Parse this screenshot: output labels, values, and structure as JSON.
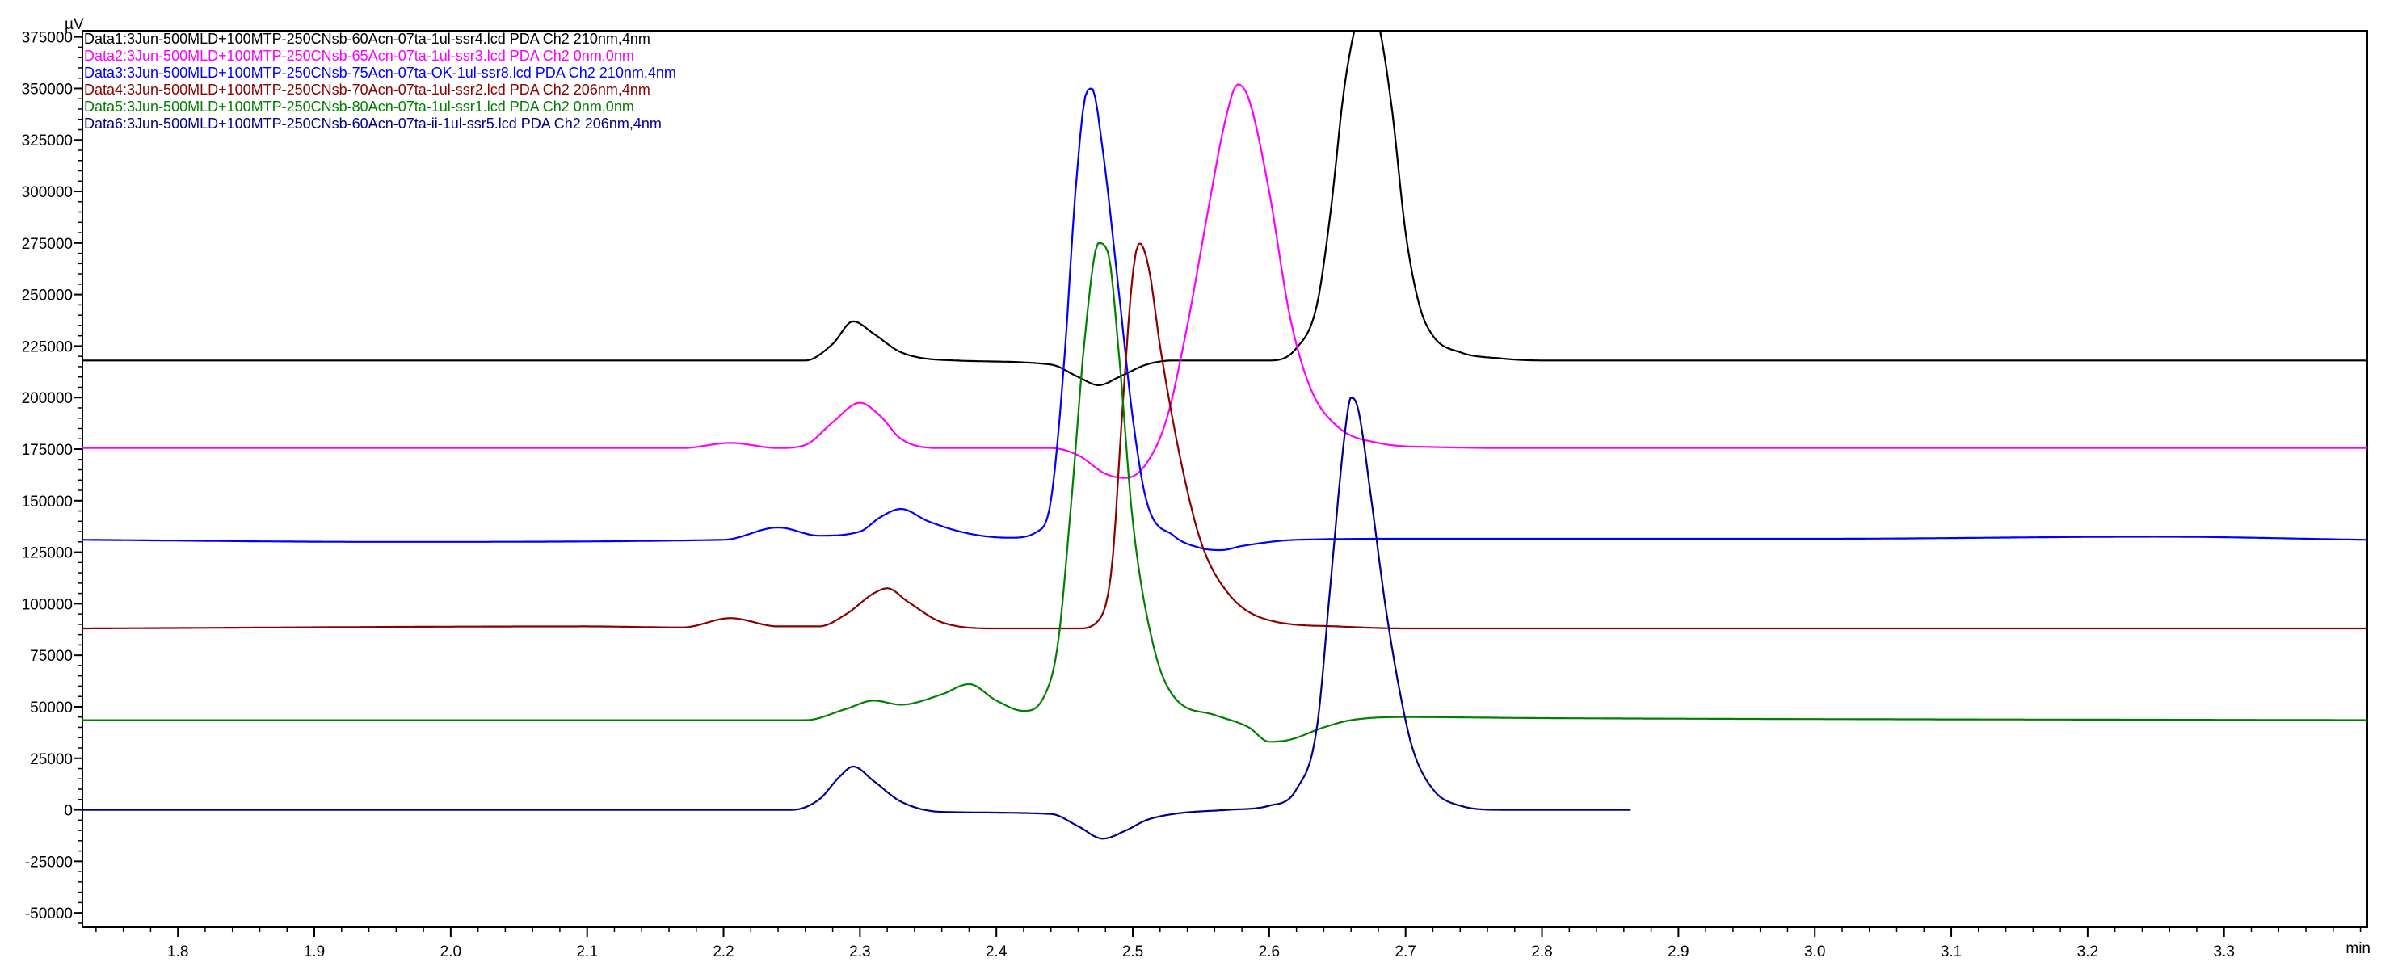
{
  "chart_data": {
    "type": "line",
    "y_unit": "µV",
    "x_unit": "min",
    "xlim": [
      1.73,
      3.405
    ],
    "ylim": [
      -57000,
      378000
    ],
    "x_ticks": [
      1.8,
      1.9,
      2.0,
      2.1,
      2.2,
      2.3,
      2.4,
      2.5,
      2.6,
      2.7,
      2.8,
      2.9,
      3.0,
      3.1,
      3.2,
      3.3
    ],
    "x_tick_labels": [
      "1.8",
      "1.9",
      "2.0",
      "2.1",
      "2.2",
      "2.3",
      "2.4",
      "2.5",
      "2.6",
      "2.7",
      "2.8",
      "2.9",
      "3.0",
      "3.1",
      "3.2",
      "3.3"
    ],
    "y_ticks": [
      375000,
      350000,
      325000,
      300000,
      275000,
      250000,
      225000,
      200000,
      175000,
      150000,
      125000,
      100000,
      75000,
      50000,
      25000,
      0,
      -25000,
      -50000
    ],
    "y_tick_labels": [
      "375000",
      "350000",
      "325000",
      "300000",
      "275000",
      "250000",
      "225000",
      "200000",
      "175000",
      "150000",
      "125000",
      "100000",
      "75000",
      "50000",
      "25000",
      "0",
      "-25000",
      "-50000"
    ],
    "grid": false,
    "legend_position": "top-left",
    "series": [
      {
        "name": "Data1:3Jun-500MLD+100MTP-250CNsb-60Acn-07ta-1ul-ssr4.lcd PDA Ch2 210nm,4nm",
        "color": "#000000",
        "x_end": 3.405,
        "baseline": 218000,
        "points": [
          [
            1.73,
            218000
          ],
          [
            2.26,
            218000
          ],
          [
            2.28,
            226000
          ],
          [
            2.295,
            237000
          ],
          [
            2.31,
            231000
          ],
          [
            2.33,
            222000
          ],
          [
            2.37,
            218000
          ],
          [
            2.44,
            216000
          ],
          [
            2.46,
            210000
          ],
          [
            2.475,
            206000
          ],
          [
            2.49,
            210000
          ],
          [
            2.51,
            216000
          ],
          [
            2.53,
            218000
          ],
          [
            2.6,
            218000
          ],
          [
            2.62,
            224000
          ],
          [
            2.635,
            245000
          ],
          [
            2.645,
            290000
          ],
          [
            2.655,
            350000
          ],
          [
            2.665,
            385000
          ],
          [
            2.672,
            395000
          ],
          [
            2.68,
            382000
          ],
          [
            2.69,
            340000
          ],
          [
            2.7,
            280000
          ],
          [
            2.71,
            245000
          ],
          [
            2.72,
            230000
          ],
          [
            2.74,
            222000
          ],
          [
            2.77,
            219000
          ],
          [
            2.8,
            218000
          ],
          [
            3.405,
            218000
          ]
        ]
      },
      {
        "name": "Data2:3Jun-500MLD+100MTP-250CNsb-65Acn-07ta-1ul-ssr3.lcd PDA Ch2 0nm,0nm",
        "color": "#ff00ff",
        "x_end": 3.405,
        "baseline": 175500,
        "points": [
          [
            1.73,
            175500
          ],
          [
            2.17,
            175500
          ],
          [
            2.205,
            178000
          ],
          [
            2.24,
            175500
          ],
          [
            2.26,
            177000
          ],
          [
            2.28,
            188000
          ],
          [
            2.3,
            197500
          ],
          [
            2.315,
            191000
          ],
          [
            2.33,
            180000
          ],
          [
            2.36,
            175500
          ],
          [
            2.44,
            175500
          ],
          [
            2.46,
            172000
          ],
          [
            2.48,
            163000
          ],
          [
            2.495,
            161000
          ],
          [
            2.51,
            168000
          ],
          [
            2.525,
            190000
          ],
          [
            2.54,
            235000
          ],
          [
            2.555,
            290000
          ],
          [
            2.568,
            335000
          ],
          [
            2.577,
            352000
          ],
          [
            2.585,
            345000
          ],
          [
            2.6,
            300000
          ],
          [
            2.615,
            240000
          ],
          [
            2.63,
            205000
          ],
          [
            2.65,
            186000
          ],
          [
            2.68,
            178000
          ],
          [
            2.72,
            176000
          ],
          [
            2.8,
            175500
          ],
          [
            3.405,
            175500
          ]
        ]
      },
      {
        "name": "Data3:3Jun-500MLD+100MTP-250CNsb-75Acn-07ta-OK-1ul-ssr8.lcd PDA Ch2 210nm,4nm",
        "color": "#0000ff",
        "x_end": 3.405,
        "baseline": 131000,
        "points": [
          [
            1.73,
            131000
          ],
          [
            1.95,
            130000
          ],
          [
            2.2,
            131000
          ],
          [
            2.24,
            137000
          ],
          [
            2.27,
            133000
          ],
          [
            2.3,
            135000
          ],
          [
            2.315,
            142000
          ],
          [
            2.33,
            146000
          ],
          [
            2.35,
            140000
          ],
          [
            2.38,
            134000
          ],
          [
            2.41,
            132000
          ],
          [
            2.43,
            135000
          ],
          [
            2.44,
            150000
          ],
          [
            2.45,
            220000
          ],
          [
            2.458,
            300000
          ],
          [
            2.466,
            348000
          ],
          [
            2.47,
            350000
          ],
          [
            2.478,
            320000
          ],
          [
            2.49,
            250000
          ],
          [
            2.5,
            190000
          ],
          [
            2.51,
            150000
          ],
          [
            2.53,
            133000
          ],
          [
            2.55,
            127000
          ],
          [
            2.565,
            126000
          ],
          [
            2.58,
            128000
          ],
          [
            2.62,
            131000
          ],
          [
            2.7,
            131500
          ],
          [
            3.0,
            131500
          ],
          [
            3.25,
            132500
          ],
          [
            3.405,
            131000
          ]
        ]
      },
      {
        "name": "Data4:3Jun-500MLD+100MTP-250CNsb-70Acn-07ta-1ul-ssr2.lcd PDA Ch2 206nm,4nm",
        "color": "#8b0000",
        "x_end": 3.405,
        "baseline": 88000,
        "points": [
          [
            1.73,
            88000
          ],
          [
            2.1,
            89000
          ],
          [
            2.17,
            88500
          ],
          [
            2.205,
            93000
          ],
          [
            2.24,
            89000
          ],
          [
            2.27,
            89000
          ],
          [
            2.29,
            95000
          ],
          [
            2.31,
            105000
          ],
          [
            2.32,
            107500
          ],
          [
            2.335,
            101000
          ],
          [
            2.36,
            91000
          ],
          [
            2.4,
            88000
          ],
          [
            2.46,
            88000
          ],
          [
            2.475,
            92000
          ],
          [
            2.485,
            120000
          ],
          [
            2.492,
            190000
          ],
          [
            2.5,
            260000
          ],
          [
            2.505,
            275000
          ],
          [
            2.512,
            262000
          ],
          [
            2.52,
            225000
          ],
          [
            2.535,
            170000
          ],
          [
            2.55,
            130000
          ],
          [
            2.57,
            105000
          ],
          [
            2.6,
            92000
          ],
          [
            2.65,
            89000
          ],
          [
            2.7,
            88000
          ],
          [
            3.405,
            88000
          ]
        ]
      },
      {
        "name": "Data5:3Jun-500MLD+100MTP-250CNsb-80Acn-07ta-1ul-ssr1.lcd PDA Ch2 0nm,0nm",
        "color": "#008000",
        "x_end": 3.405,
        "baseline": 43500,
        "points": [
          [
            1.73,
            43500
          ],
          [
            2.26,
            43500
          ],
          [
            2.29,
            49000
          ],
          [
            2.31,
            53000
          ],
          [
            2.33,
            51000
          ],
          [
            2.36,
            56000
          ],
          [
            2.38,
            61000
          ],
          [
            2.4,
            53000
          ],
          [
            2.42,
            48000
          ],
          [
            2.435,
            55000
          ],
          [
            2.445,
            80000
          ],
          [
            2.455,
            150000
          ],
          [
            2.465,
            230000
          ],
          [
            2.475,
            275000
          ],
          [
            2.482,
            270000
          ],
          [
            2.49,
            220000
          ],
          [
            2.5,
            140000
          ],
          [
            2.515,
            80000
          ],
          [
            2.53,
            55000
          ],
          [
            2.56,
            46000
          ],
          [
            2.585,
            40000
          ],
          [
            2.6,
            33000
          ],
          [
            2.615,
            34000
          ],
          [
            2.64,
            40000
          ],
          [
            2.66,
            43500
          ],
          [
            2.7,
            45000
          ],
          [
            2.8,
            44500
          ],
          [
            3.405,
            43500
          ]
        ]
      },
      {
        "name": "Data6:3Jun-500MLD+100MTP-250CNsb-60Acn-07ta-ii-1ul-ssr5.lcd PDA Ch2 206nm,4nm",
        "color": "#00008b",
        "x_end": 2.865,
        "baseline": 0,
        "points": [
          [
            1.73,
            0
          ],
          [
            2.25,
            0
          ],
          [
            2.27,
            5000
          ],
          [
            2.285,
            16000
          ],
          [
            2.295,
            21000
          ],
          [
            2.31,
            14000
          ],
          [
            2.33,
            4000
          ],
          [
            2.36,
            -1000
          ],
          [
            2.44,
            -2000
          ],
          [
            2.46,
            -8000
          ],
          [
            2.478,
            -14000
          ],
          [
            2.495,
            -10000
          ],
          [
            2.51,
            -5000
          ],
          [
            2.53,
            -2000
          ],
          [
            2.57,
            0
          ],
          [
            2.6,
            2000
          ],
          [
            2.62,
            10000
          ],
          [
            2.635,
            40000
          ],
          [
            2.645,
            110000
          ],
          [
            2.655,
            180000
          ],
          [
            2.66,
            200000
          ],
          [
            2.665,
            195000
          ],
          [
            2.675,
            150000
          ],
          [
            2.685,
            100000
          ],
          [
            2.695,
            60000
          ],
          [
            2.705,
            30000
          ],
          [
            2.72,
            10000
          ],
          [
            2.74,
            2000
          ],
          [
            2.77,
            0
          ],
          [
            2.865,
            0
          ]
        ]
      }
    ]
  }
}
